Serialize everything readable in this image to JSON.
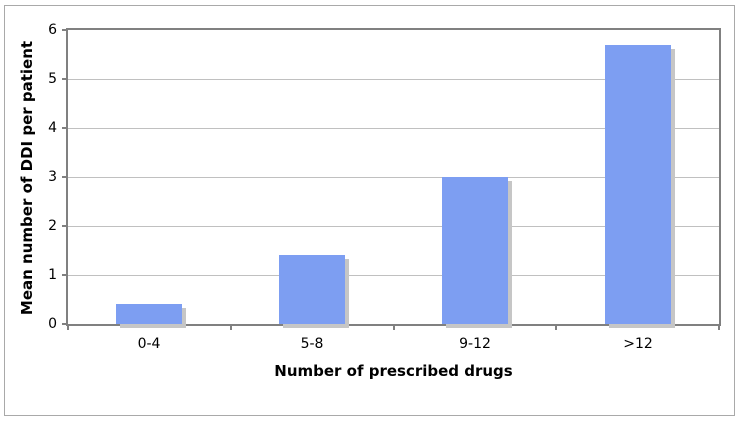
{
  "chart_data": {
    "type": "bar",
    "title": "",
    "categories": [
      "0-4",
      "5-8",
      "9-12",
      ">12"
    ],
    "values": [
      0.4,
      1.4,
      3.0,
      5.7
    ],
    "xlabel": "Number of prescribed drugs",
    "ylabel": "Mean number of DDI per patient",
    "ylim": [
      0,
      6
    ],
    "yticks": [
      0,
      1,
      2,
      3,
      4,
      5,
      6
    ],
    "grid": "horizontal",
    "legend": "none",
    "colors": {
      "bar_fill": "#7d9ef2",
      "bar_shadow": "#c6c6c6",
      "gridline": "#c0c0c0",
      "axis": "#808080",
      "figure_border": "#a9a9a9",
      "background": "#ffffff"
    }
  }
}
